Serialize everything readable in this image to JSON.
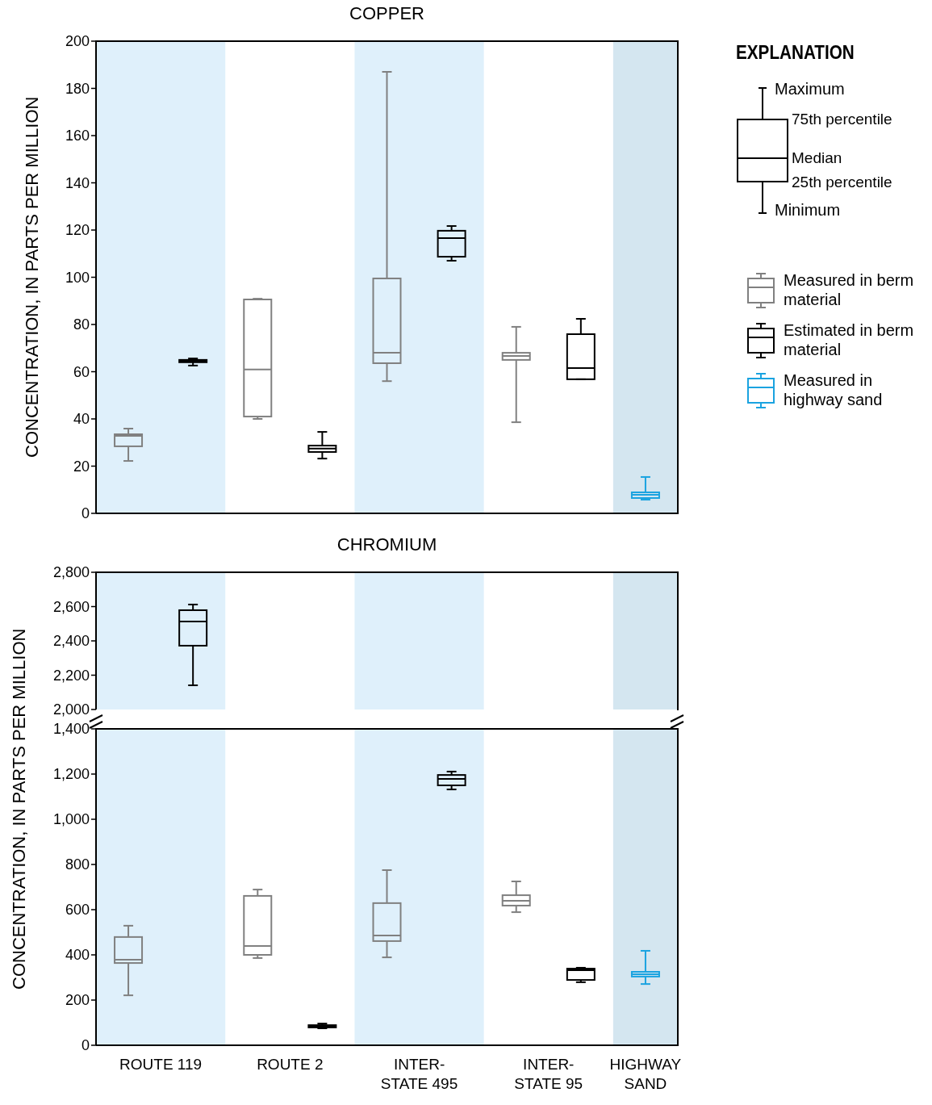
{
  "chart_data": [
    {
      "type": "box",
      "title": "COPPER",
      "ylabel": "CONCENTRATION, IN PARTS PER MILLION",
      "legend_title": "EXPLANATION",
      "legend": "right",
      "tick_labels": "y",
      "annotations": [
        "Maximum",
        "75th percentile",
        "Median",
        "25th percentile",
        "Minimum"
      ],
      "categories": [
        "ROUTE 119",
        "ROUTE 2",
        "INTER-STATE 495",
        "INTER-STATE 95",
        "HIGHWAY SAND"
      ],
      "ylim": [
        0,
        200
      ],
      "yticks": [
        0,
        20,
        40,
        60,
        80,
        100,
        120,
        140,
        160,
        180,
        200
      ],
      "bands": [
        {
          "axis": "x",
          "from": "ROUTE 119",
          "to": "ROUTE 119",
          "color": "#dff0fb"
        },
        {
          "axis": "x",
          "from": "INTER-STATE 495",
          "to": "INTER-STATE 495",
          "color": "#dff0fb"
        },
        {
          "axis": "x",
          "from": "HIGHWAY SAND",
          "to": "HIGHWAY SAND",
          "color": "#d4e6f0"
        }
      ],
      "series": [
        {
          "name": "Measured in berm material",
          "color": "#808080",
          "boxes": [
            {
              "low": 22.2,
              "q1": 28.4,
              "median": 32.8,
              "q3": 33.5,
              "high": 35.9
            },
            {
              "low": 40,
              "q1": 41,
              "median": 60.9,
              "q3": 90.6,
              "high": 90.9
            },
            {
              "low": 56,
              "q1": 63.6,
              "median": 68,
              "q3": 99.5,
              "high": 187
            },
            {
              "low": 38.6,
              "q1": 65,
              "median": 66.7,
              "q3": 68,
              "high": 79
            },
            null
          ]
        },
        {
          "name": "Estimated in berm material",
          "color": "#000000",
          "boxes": [
            {
              "low": 62.6,
              "q1": 64,
              "median": 64.6,
              "q3": 65,
              "high": 65.6
            },
            {
              "low": 23.2,
              "q1": 26,
              "median": 27.4,
              "q3": 28.7,
              "high": 34.5
            },
            {
              "low": 107,
              "q1": 108.7,
              "median": 116.6,
              "q3": 119.7,
              "high": 121.7
            },
            {
              "low": 56.8,
              "q1": 56.8,
              "median": 61.5,
              "q3": 75.9,
              "high": 82.4
            },
            null
          ]
        },
        {
          "name": "Measured in highway sand",
          "color": "#1aa3e0",
          "boxes": [
            null,
            null,
            null,
            null,
            {
              "low": 5.8,
              "q1": 6.5,
              "median": 7.9,
              "q3": 8.9,
              "high": 15.4
            }
          ]
        }
      ]
    },
    {
      "type": "box",
      "title": "CHROMIUM",
      "tick_labels": "y",
      "categories": [
        "ROUTE 119",
        "ROUTE 2",
        "INTER-STATE 495",
        "INTER-STATE 95",
        "HIGHWAY SAND"
      ],
      "ylim": [
        2000,
        2800
      ],
      "yticks": [
        {
          "value": 2000,
          "label": "2,000"
        },
        {
          "value": 2200,
          "label": "2,200"
        },
        {
          "value": 2400,
          "label": "2,400"
        },
        {
          "value": 2600,
          "label": "2,600"
        },
        {
          "value": 2800,
          "label": "2,800"
        }
      ],
      "bands": [
        {
          "axis": "x",
          "from": "ROUTE 119",
          "to": "ROUTE 119",
          "color": "#dff0fb"
        },
        {
          "axis": "x",
          "from": "INTER-STATE 495",
          "to": "INTER-STATE 495",
          "color": "#dff0fb"
        },
        {
          "axis": "x",
          "from": "HIGHWAY SAND",
          "to": "HIGHWAY SAND",
          "color": "#d4e6f0"
        }
      ],
      "series": [
        {
          "color": "#000000",
          "boxes": [
            {
              "low": 2141,
              "q1": 2372,
              "median": 2513,
              "q3": 2579,
              "high": 2612
            },
            null,
            null,
            null,
            null
          ]
        }
      ]
    },
    {
      "type": "box",
      "ylabel": "CONCENTRATION, IN PARTS PER MILLION",
      "categories": [
        "ROUTE 119",
        "ROUTE 2",
        "INTER-STATE 495",
        "INTER-STATE 95",
        "HIGHWAY SAND"
      ],
      "ylim": [
        0,
        1400
      ],
      "yticks": [
        0,
        200,
        400,
        600,
        800,
        {
          "value": 1000,
          "label": "1,000"
        },
        {
          "value": 1200,
          "label": "1,200"
        },
        {
          "value": 1400,
          "label": "1,400"
        }
      ],
      "bands": [
        {
          "axis": "x",
          "from": "ROUTE 119",
          "to": "ROUTE 119",
          "color": "#dff0fb"
        },
        {
          "axis": "x",
          "from": "INTER-STATE 495",
          "to": "INTER-STATE 495",
          "color": "#dff0fb"
        },
        {
          "axis": "x",
          "from": "HIGHWAY SAND",
          "to": "HIGHWAY SAND",
          "color": "#d4e6f0"
        }
      ],
      "series": [
        {
          "color": "#808080",
          "boxes": [
            {
              "low": 221,
              "q1": 364,
              "median": 379,
              "q3": 479,
              "high": 529
            },
            {
              "low": 386,
              "q1": 400,
              "median": 439,
              "q3": 661,
              "high": 689
            },
            {
              "low": 389,
              "q1": 461,
              "median": 486,
              "q3": 629,
              "high": 775
            },
            {
              "low": 589,
              "q1": 618,
              "median": 639,
              "q3": 664,
              "high": 725
            },
            null
          ]
        },
        {
          "color": "#000000",
          "boxes": [
            null,
            {
              "low": 75,
              "q1": 79,
              "median": 86,
              "q3": 89,
              "high": 96
            },
            {
              "low": 1132,
              "q1": 1150,
              "median": 1179,
              "q3": 1196,
              "high": 1211
            },
            {
              "low": 279,
              "q1": 289,
              "median": 332,
              "q3": 339,
              "high": 343
            },
            null
          ]
        },
        {
          "color": "#1aa3e0",
          "boxes": [
            null,
            null,
            null,
            null,
            {
              "low": 271,
              "q1": 304,
              "median": 314,
              "q3": 325,
              "high": 418
            }
          ]
        }
      ]
    }
  ]
}
